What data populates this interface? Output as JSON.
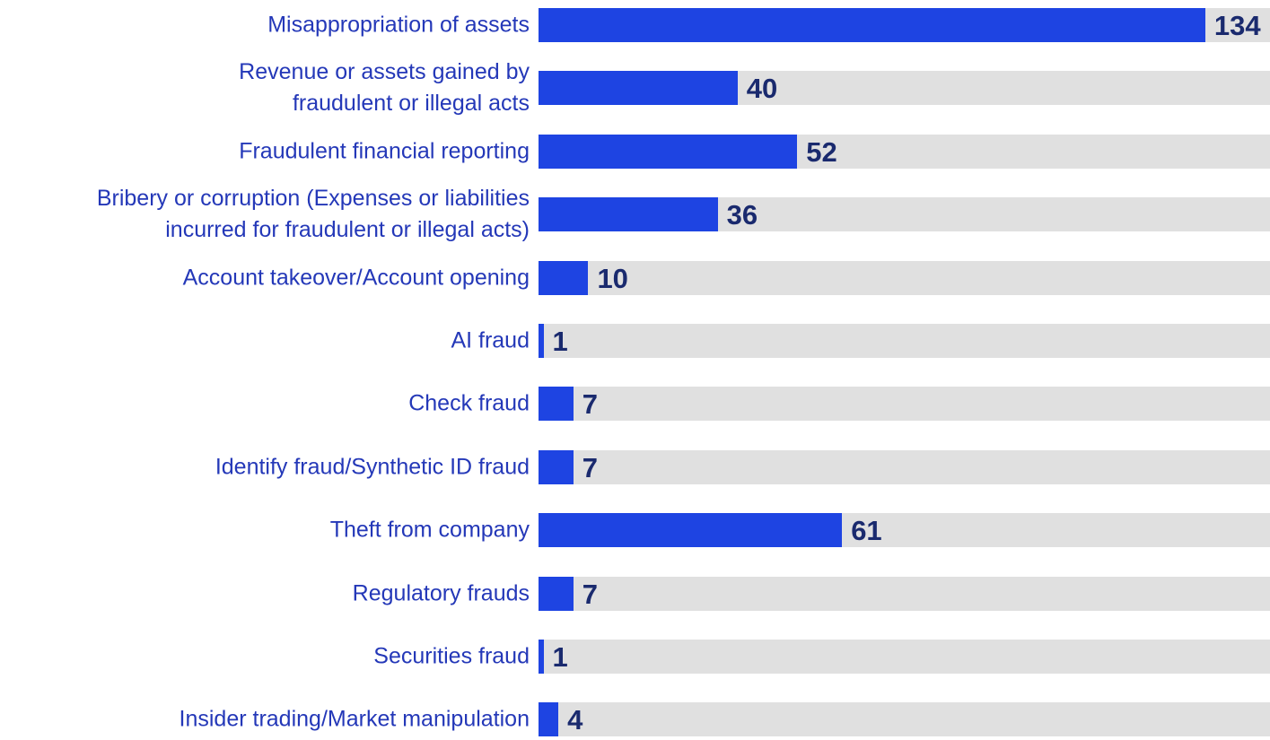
{
  "chart_data": {
    "type": "barh",
    "categories": [
      "Misappropriation of assets",
      "Revenue or assets gained by\nfraudulent or illegal acts",
      "Fraudulent financial reporting",
      "Bribery or corruption (Expenses or liabilities\nincurred for fraudulent or illegal acts)",
      "Account takeover/Account opening",
      "AI fraud",
      "Check fraud",
      "Identify fraud/Synthetic ID fraud",
      "Theft from company",
      "Regulatory frauds",
      "Securities fraud",
      "Insider trading/Market manipulation"
    ],
    "values": [
      134,
      40,
      52,
      36,
      10,
      1,
      7,
      7,
      61,
      7,
      1,
      4
    ],
    "color": "#1e44e2",
    "track_color": "#e0e0e0",
    "xlim": [
      0,
      147
    ]
  }
}
